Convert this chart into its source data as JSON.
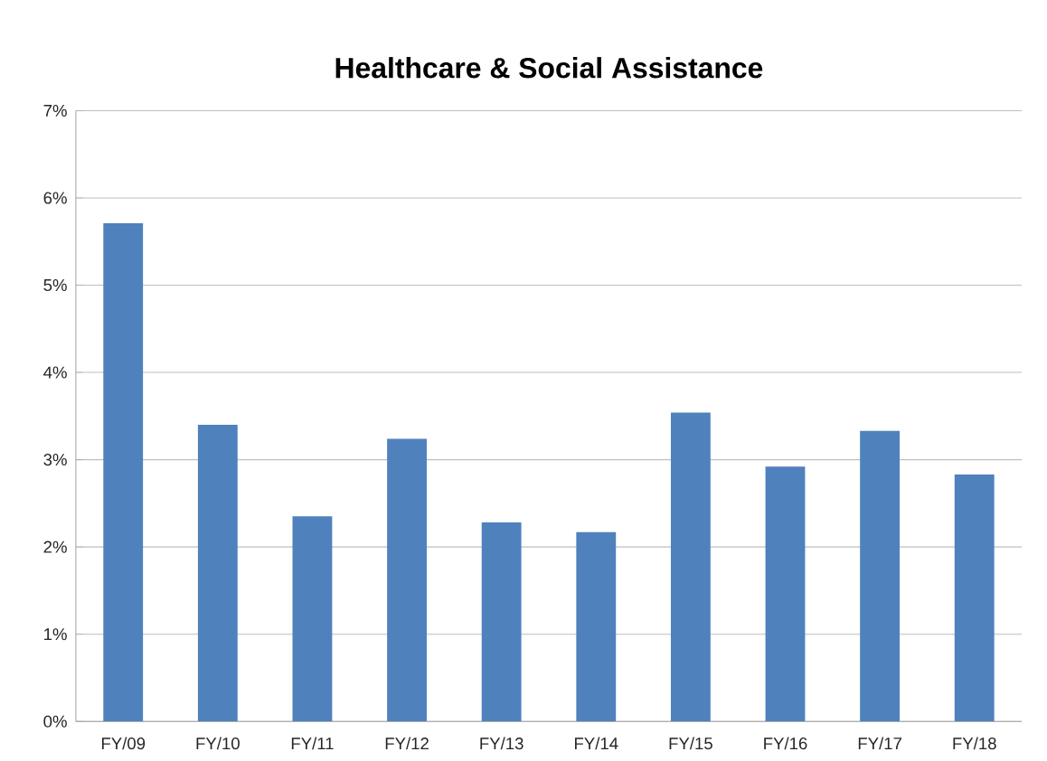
{
  "chart_data": {
    "type": "bar",
    "title": "Healthcare & Social Assistance",
    "categories": [
      "FY/09",
      "FY/10",
      "FY/11",
      "FY/12",
      "FY/13",
      "FY/14",
      "FY/15",
      "FY/16",
      "FY/17",
      "FY/18"
    ],
    "values": [
      5.71,
      3.4,
      2.35,
      3.24,
      2.28,
      2.17,
      3.54,
      2.92,
      3.33,
      2.83
    ],
    "color": "#4f81bd",
    "ylim": [
      0,
      7
    ],
    "yticks": [
      {
        "value": 0,
        "label": "0%"
      },
      {
        "value": 1,
        "label": "1%"
      },
      {
        "value": 2,
        "label": "2%"
      },
      {
        "value": 3,
        "label": "3%"
      },
      {
        "value": 4,
        "label": "4%"
      },
      {
        "value": 5,
        "label": "5%"
      },
      {
        "value": 6,
        "label": "6%"
      },
      {
        "value": 7,
        "label": "7%"
      }
    ],
    "grid": "y"
  }
}
